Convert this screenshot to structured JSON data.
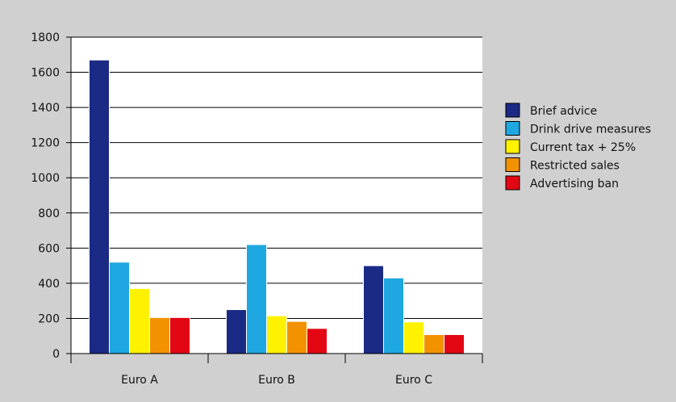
{
  "chart_data": {
    "type": "bar",
    "title": "",
    "xlabel": "",
    "ylabel": "",
    "ylim": [
      0,
      1800
    ],
    "yticks": [
      0,
      200,
      400,
      600,
      800,
      1000,
      1200,
      1400,
      1600,
      1800
    ],
    "grid": true,
    "legend_position": "right",
    "categories": [
      "Euro A",
      "Euro B",
      "Euro C"
    ],
    "series": [
      {
        "name": "Brief advice",
        "color": "#1a2a85",
        "values": [
          1670,
          250,
          500
        ]
      },
      {
        "name": "Drink drive measures",
        "color": "#1ea7e0",
        "values": [
          520,
          620,
          430
        ]
      },
      {
        "name": "Current tax + 25%",
        "color": "#fff200",
        "values": [
          370,
          215,
          180
        ]
      },
      {
        "name": "Restricted sales",
        "color": "#f39200",
        "values": [
          205,
          183,
          108
        ]
      },
      {
        "name": "Advertising ban",
        "color": "#e30613",
        "values": [
          205,
          143,
          108
        ]
      }
    ]
  }
}
